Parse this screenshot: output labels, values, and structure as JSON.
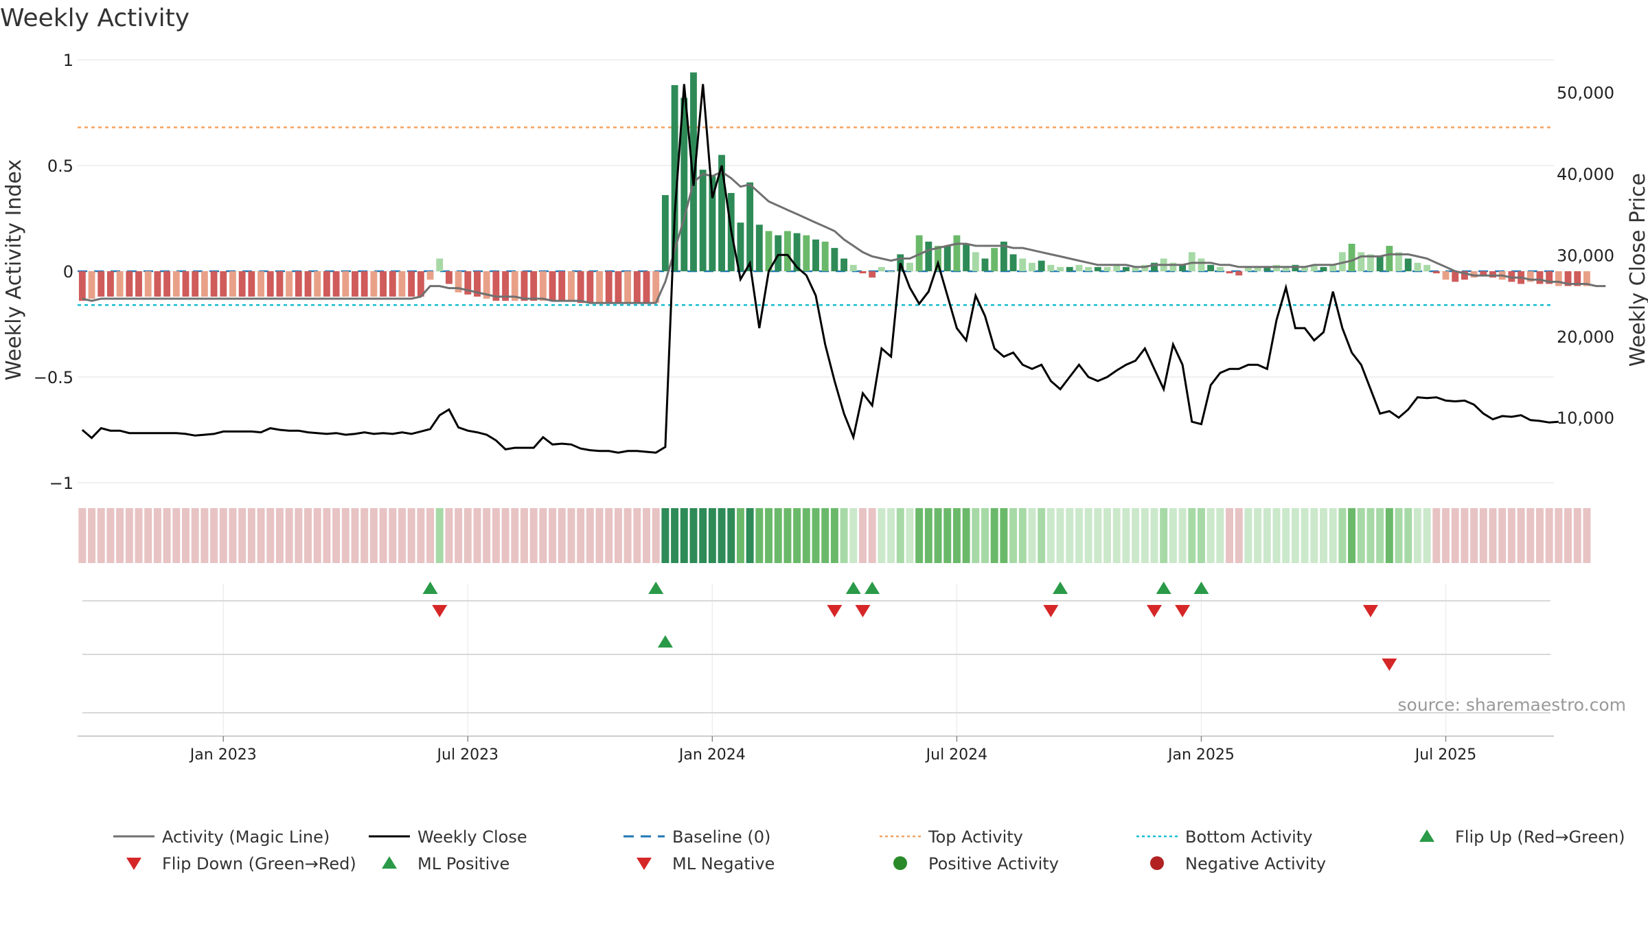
{
  "chart_data": {
    "type": "bar",
    "title": "Weekly Activity",
    "ylabel_left": "Weekly Activity Index",
    "ylabel_right": "Weekly Close Price",
    "ylim_left": [
      -1,
      1
    ],
    "ylim_right": [
      2000,
      54000
    ],
    "left_ticks": [
      {
        "v": 1,
        "label": "1"
      },
      {
        "v": 0.5,
        "label": "0.5"
      },
      {
        "v": 0,
        "label": "0"
      },
      {
        "v": -0.5,
        "label": "−0.5"
      },
      {
        "v": -1,
        "label": "−1"
      }
    ],
    "right_ticks": [
      {
        "v": 50000,
        "label": "50,000"
      },
      {
        "v": 40000,
        "label": "40,000"
      },
      {
        "v": 30000,
        "label": "30,000"
      },
      {
        "v": 20000,
        "label": "20,000"
      },
      {
        "v": 10000,
        "label": "10,000"
      }
    ],
    "x_ticks": [
      {
        "week": 15,
        "label": "Jan 2023"
      },
      {
        "week": 41,
        "label": "Jul 2023"
      },
      {
        "week": 67,
        "label": "Jan 2024"
      },
      {
        "week": 93,
        "label": "Jul 2024"
      },
      {
        "week": 119,
        "label": "Jan 2025"
      },
      {
        "week": 145,
        "label": "Jul 2025"
      }
    ],
    "weeks": 157,
    "activity": [
      -0.14,
      -0.13,
      -0.12,
      -0.12,
      -0.12,
      -0.12,
      -0.12,
      -0.12,
      -0.12,
      -0.12,
      -0.12,
      -0.12,
      -0.12,
      -0.12,
      -0.12,
      -0.12,
      -0.12,
      -0.12,
      -0.12,
      -0.12,
      -0.12,
      -0.12,
      -0.12,
      -0.12,
      -0.12,
      -0.12,
      -0.12,
      -0.12,
      -0.12,
      -0.12,
      -0.12,
      -0.12,
      -0.12,
      -0.12,
      -0.12,
      -0.12,
      -0.12,
      -0.04,
      0.06,
      -0.06,
      -0.1,
      -0.11,
      -0.12,
      -0.13,
      -0.14,
      -0.14,
      -0.14,
      -0.14,
      -0.14,
      -0.14,
      -0.14,
      -0.14,
      -0.14,
      -0.15,
      -0.15,
      -0.15,
      -0.15,
      -0.15,
      -0.15,
      -0.15,
      -0.15,
      -0.15,
      0.36,
      0.88,
      0.82,
      0.94,
      0.48,
      0.45,
      0.55,
      0.37,
      0.23,
      0.42,
      0.22,
      0.19,
      0.17,
      0.19,
      0.18,
      0.17,
      0.15,
      0.14,
      0.11,
      0.06,
      0.03,
      -0.01,
      -0.03,
      0.02,
      0.0,
      0.08,
      0.04,
      0.17,
      0.14,
      0.12,
      0.12,
      0.17,
      0.13,
      0.09,
      0.06,
      0.11,
      0.14,
      0.08,
      0.06,
      0.04,
      0.05,
      0.03,
      0.02,
      0.02,
      0.03,
      0.02,
      0.02,
      0.02,
      0.03,
      0.02,
      0.02,
      0.03,
      0.04,
      0.06,
      0.04,
      0.03,
      0.09,
      0.06,
      0.03,
      0.02,
      -0.01,
      -0.02,
      0.02,
      0.02,
      0.02,
      0.03,
      0.02,
      0.03,
      0.02,
      0.03,
      0.02,
      0.03,
      0.09,
      0.13,
      0.09,
      0.08,
      0.07,
      0.12,
      0.09,
      0.06,
      0.04,
      0.03,
      -0.01,
      -0.04,
      -0.05,
      -0.04,
      -0.03,
      -0.02,
      -0.03,
      -0.04,
      -0.05,
      -0.06,
      -0.05,
      -0.06,
      -0.06,
      -0.07,
      -0.07,
      -0.07,
      -0.07
    ],
    "magic_line": [
      -0.13,
      -0.14,
      -0.13,
      -0.13,
      -0.13,
      -0.13,
      -0.13,
      -0.13,
      -0.13,
      -0.13,
      -0.13,
      -0.13,
      -0.13,
      -0.13,
      -0.13,
      -0.13,
      -0.13,
      -0.13,
      -0.13,
      -0.13,
      -0.13,
      -0.13,
      -0.13,
      -0.13,
      -0.13,
      -0.13,
      -0.13,
      -0.13,
      -0.13,
      -0.13,
      -0.13,
      -0.13,
      -0.13,
      -0.13,
      -0.13,
      -0.13,
      -0.12,
      -0.07,
      -0.07,
      -0.08,
      -0.08,
      -0.09,
      -0.1,
      -0.11,
      -0.12,
      -0.12,
      -0.12,
      -0.13,
      -0.13,
      -0.13,
      -0.14,
      -0.14,
      -0.14,
      -0.14,
      -0.15,
      -0.15,
      -0.15,
      -0.15,
      -0.15,
      -0.15,
      -0.15,
      -0.15,
      -0.05,
      0.1,
      0.25,
      0.42,
      0.46,
      0.45,
      0.47,
      0.44,
      0.4,
      0.41,
      0.37,
      0.33,
      0.31,
      0.29,
      0.27,
      0.25,
      0.23,
      0.21,
      0.19,
      0.15,
      0.12,
      0.09,
      0.07,
      0.06,
      0.05,
      0.06,
      0.06,
      0.08,
      0.1,
      0.11,
      0.12,
      0.13,
      0.13,
      0.12,
      0.12,
      0.12,
      0.12,
      0.11,
      0.11,
      0.1,
      0.09,
      0.08,
      0.07,
      0.06,
      0.05,
      0.04,
      0.03,
      0.03,
      0.03,
      0.03,
      0.02,
      0.02,
      0.03,
      0.03,
      0.03,
      0.03,
      0.04,
      0.04,
      0.04,
      0.03,
      0.03,
      0.02,
      0.02,
      0.02,
      0.02,
      0.02,
      0.02,
      0.02,
      0.02,
      0.03,
      0.03,
      0.03,
      0.04,
      0.05,
      0.07,
      0.07,
      0.07,
      0.08,
      0.08,
      0.08,
      0.07,
      0.06,
      0.04,
      0.02,
      0.0,
      -0.01,
      -0.02,
      -0.02,
      -0.02,
      -0.02,
      -0.03,
      -0.03,
      -0.04,
      -0.04,
      -0.05,
      -0.05,
      -0.06,
      -0.06,
      -0.06,
      -0.07,
      -0.07
    ],
    "weekly_close": [
      8500,
      7500,
      8700,
      8400,
      8400,
      8100,
      8100,
      8100,
      8100,
      8100,
      8100,
      8000,
      7800,
      7900,
      8000,
      8300,
      8300,
      8300,
      8300,
      8200,
      8700,
      8500,
      8400,
      8400,
      8200,
      8100,
      8000,
      8100,
      7900,
      8000,
      8200,
      8000,
      8100,
      8000,
      8200,
      8000,
      8300,
      8600,
      10300,
      11000,
      8800,
      8400,
      8200,
      7900,
      7200,
      6100,
      6300,
      6300,
      6300,
      7600,
      6700,
      6800,
      6700,
      6200,
      6000,
      5900,
      5900,
      5700,
      5900,
      5900,
      5800,
      5700,
      6400,
      35000,
      51000,
      38500,
      51000,
      37000,
      41000,
      33000,
      27000,
      29000,
      21000,
      28000,
      30000,
      30000,
      28500,
      27500,
      25000,
      19000,
      14500,
      10500,
      7600,
      13000,
      11500,
      18500,
      17500,
      29000,
      26000,
      24000,
      25500,
      29000,
      25000,
      21000,
      19500,
      25000,
      22500,
      18500,
      17500,
      18000,
      16500,
      16000,
      16500,
      14500,
      13500,
      15000,
      16500,
      15000,
      14500,
      15000,
      15800,
      16500,
      17000,
      18500,
      16000,
      13500,
      19000,
      16500,
      9500,
      9200,
      14000,
      15500,
      16000,
      16000,
      16500,
      16500,
      16000,
      22000,
      26000,
      21000,
      21000,
      19500,
      20500,
      25500,
      21000,
      18000,
      16500,
      13500,
      10500,
      10800,
      10000,
      11000,
      12500,
      12400,
      12500,
      12100,
      12000,
      12100,
      11600,
      10500,
      9800,
      10200,
      10100,
      10300,
      9700,
      9600,
      9400,
      9500
    ],
    "thresholds": {
      "top": 0.68,
      "bottom": -0.16
    },
    "strip_signals": [
      {
        "week": 37,
        "dir": "up"
      },
      {
        "week": 61,
        "dir": "up"
      },
      {
        "week": 82,
        "dir": "up"
      },
      {
        "week": 84,
        "dir": "up"
      },
      {
        "week": 104,
        "dir": "up"
      },
      {
        "week": 115,
        "dir": "up"
      },
      {
        "week": 119,
        "dir": "up"
      },
      {
        "week": 38,
        "dir": "down"
      },
      {
        "week": 80,
        "dir": "down"
      },
      {
        "week": 83,
        "dir": "down"
      },
      {
        "week": 103,
        "dir": "down"
      },
      {
        "week": 114,
        "dir": "down"
      },
      {
        "week": 117,
        "dir": "down"
      },
      {
        "week": 137,
        "dir": "down"
      }
    ],
    "ml_signals": [
      {
        "week": 62,
        "dir": "up"
      },
      {
        "week": 139,
        "dir": "down"
      }
    ],
    "source": "source: sharemaestro.com",
    "legend": [
      {
        "label": "Activity (Magic Line)",
        "kind": "line",
        "color": "#707070"
      },
      {
        "label": "Weekly Close",
        "kind": "line",
        "color": "#000000"
      },
      {
        "label": "Baseline (0)",
        "kind": "dash",
        "color": "#1f77b4"
      },
      {
        "label": "Top Activity",
        "kind": "dot",
        "color": "#f4a261"
      },
      {
        "label": "Bottom Activity",
        "kind": "dot",
        "color": "#17becf"
      },
      {
        "label": "Flip Up (Red→Green)",
        "kind": "tri-up",
        "color": "#2a9a48"
      },
      {
        "label": "Flip Down (Green→Red)",
        "kind": "tri-down",
        "color": "#d62728"
      },
      {
        "label": "ML Positive",
        "kind": "tri-up",
        "color": "#2a9a48"
      },
      {
        "label": "ML Negative",
        "kind": "tri-down",
        "color": "#d62728"
      },
      {
        "label": "Positive Activity",
        "kind": "circle",
        "color": "#2a8a2a"
      },
      {
        "label": "Negative Activity",
        "kind": "circle",
        "color": "#b22222"
      }
    ],
    "colors": {
      "neg_strong": "#cf5b5b",
      "neg_light": "#e8a188",
      "pos_strong": "#2e8b57",
      "pos_mid": "#6ab96a",
      "pos_light": "#a6d9a6",
      "close": "#000000",
      "magic": "#707070",
      "strip_neg": "#e8c3c3",
      "strip_pos_light": "#cbe8cb"
    }
  }
}
